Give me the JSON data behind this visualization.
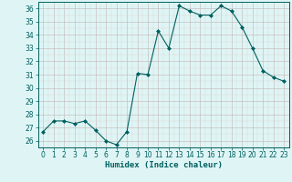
{
  "x": [
    0,
    1,
    2,
    3,
    4,
    5,
    6,
    7,
    8,
    9,
    10,
    11,
    12,
    13,
    14,
    15,
    16,
    17,
    18,
    19,
    20,
    21,
    22,
    23
  ],
  "y": [
    26.7,
    27.5,
    27.5,
    27.3,
    27.5,
    26.8,
    26.0,
    25.7,
    26.7,
    31.1,
    31.0,
    34.3,
    33.0,
    36.2,
    35.8,
    35.5,
    35.5,
    36.2,
    35.8,
    34.6,
    33.0,
    31.3,
    30.8,
    30.5
  ],
  "line_color": "#006060",
  "marker": "D",
  "marker_size": 2.0,
  "bg_color": "#dff5f5",
  "grid_major_color": "#c8c0c0",
  "grid_minor_color": "#dcd4d4",
  "xlabel": "Humidex (Indice chaleur)",
  "xlim": [
    -0.5,
    23.5
  ],
  "ylim": [
    25.5,
    36.5
  ],
  "yticks": [
    26,
    27,
    28,
    29,
    30,
    31,
    32,
    33,
    34,
    35,
    36
  ],
  "xticks": [
    0,
    1,
    2,
    3,
    4,
    5,
    6,
    7,
    8,
    9,
    10,
    11,
    12,
    13,
    14,
    15,
    16,
    17,
    18,
    19,
    20,
    21,
    22,
    23
  ],
  "xtick_labels": [
    "0",
    "1",
    "2",
    "3",
    "4",
    "5",
    "6",
    "7",
    "8",
    "9",
    "10",
    "11",
    "12",
    "13",
    "14",
    "15",
    "16",
    "17",
    "18",
    "19",
    "20",
    "21",
    "22",
    "23"
  ],
  "xlabel_color": "#006060",
  "tick_color": "#006060",
  "axis_color": "#006060",
  "tick_fontsize": 5.5,
  "xlabel_fontsize": 6.5
}
